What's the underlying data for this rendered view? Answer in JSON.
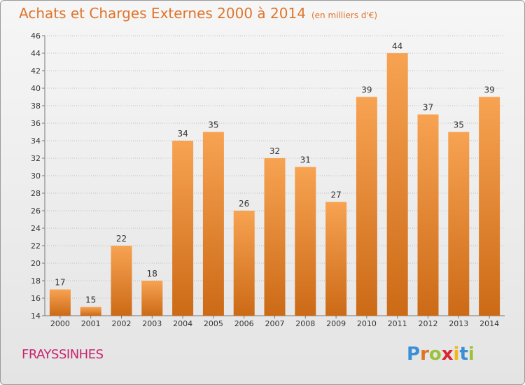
{
  "title": "Achats et Charges Externes 2000 à 2014",
  "subtitle": "(en milliers d'€)",
  "commune": "FRAYSSINHES",
  "logo": {
    "text": "Proxiti",
    "letter_colors": [
      "#3b8fd6",
      "#e0742a",
      "#9ac23c",
      "#d9262f",
      "#f2b51c",
      "#3b8fd6",
      "#9ac23c"
    ]
  },
  "colors": {
    "bar_top": "#f7a352",
    "bar_bottom": "#cc6a16",
    "grid": "#bdbdbd",
    "title": "#e0742a",
    "commune": "#c8246e"
  },
  "chart_data": {
    "type": "bar",
    "title": "Achats et Charges Externes 2000 à 2014",
    "subtitle": "(en milliers d'€)",
    "categories": [
      "2000",
      "2001",
      "2002",
      "2003",
      "2004",
      "2005",
      "2006",
      "2007",
      "2008",
      "2009",
      "2010",
      "2011",
      "2012",
      "2013",
      "2014"
    ],
    "values": [
      17,
      15,
      22,
      18,
      34,
      35,
      26,
      32,
      31,
      27,
      39,
      44,
      37,
      35,
      39
    ],
    "ylim": [
      14,
      46
    ],
    "yticks": [
      14,
      16,
      18,
      20,
      22,
      24,
      26,
      28,
      30,
      32,
      34,
      36,
      38,
      40,
      42,
      44,
      46
    ],
    "grid": true,
    "data_labels": true
  }
}
